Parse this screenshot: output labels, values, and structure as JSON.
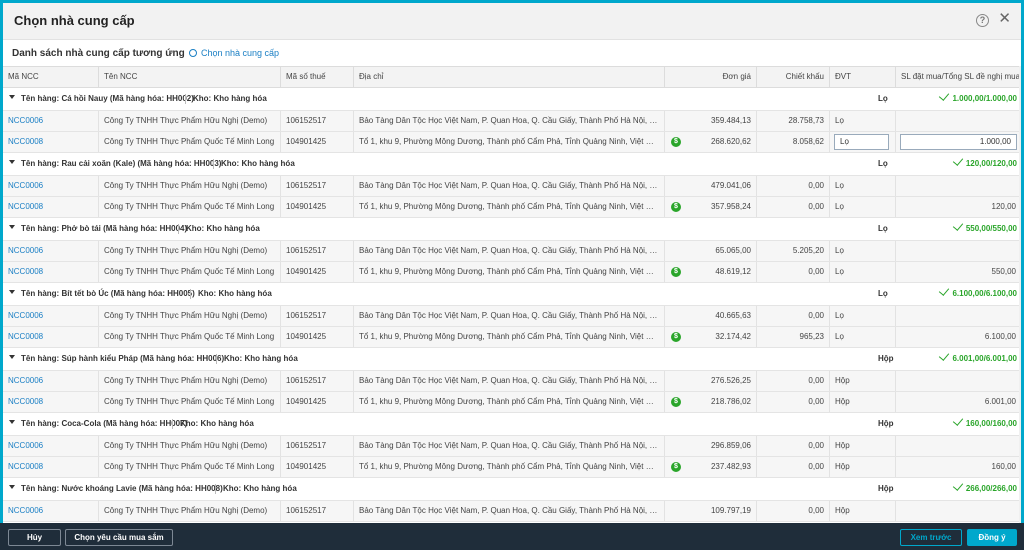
{
  "dialog": {
    "title": "Chọn nhà cung cấp"
  },
  "subhead": {
    "title": "Danh sách nhà cung cấp tương ứng",
    "choose_link": "Chọn nhà cung cấp"
  },
  "columns": [
    "Mã NCC",
    "Tên NCC",
    "Mã số thuế",
    "Địa chỉ",
    "Đơn giá",
    "Chiết khấu",
    "ĐVT",
    "SL đặt mua/Tổng SL đề nghị mua"
  ],
  "groups": [
    {
      "name": "Tên hàng: Cá hồi Nauy (Mã hàng hóa: HH002)",
      "warehouse": "Kho: Kho hàng hóa",
      "unit": "Lọ",
      "total": "1.000,00/1.000,00",
      "rows": [
        {
          "code": "NCC0006",
          "name": "Công Ty TNHH Thực Phẩm Hữu Nghị (Demo)",
          "tax": "106152517",
          "address": "Bảo Tàng Dân Tộc Học Việt Nam, P. Quan Hoa, Q. Cầu Giấy, Thành Phố Hà Nội, Việt Nam",
          "price": "359.484,13",
          "discount": "28.758,73",
          "unit": "Lọ",
          "qty": "",
          "dollar": false,
          "editing": false
        },
        {
          "code": "NCC0008",
          "name": "Công Ty TNHH Thực Phẩm Quốc Tế Minh Long",
          "tax": "104901425",
          "address": "Tổ 1, khu 9, Phường Mông Dương, Thành phố Cẩm Phả, Tỉnh Quảng Ninh, Việt Nam",
          "price": "268.620,62",
          "discount": "8.058,62",
          "unit": "Lọ",
          "qty": "1.000,00",
          "dollar": true,
          "editing": true
        }
      ]
    },
    {
      "name": "Tên hàng: Rau cải xoăn (Kale) (Mã hàng hóa: HH003)",
      "warehouse": "Kho: Kho hàng hóa",
      "unit": "Lọ",
      "total": "120,00/120,00",
      "rows": [
        {
          "code": "NCC0006",
          "name": "Công Ty TNHH Thực Phẩm Hữu Nghị (Demo)",
          "tax": "106152517",
          "address": "Bảo Tàng Dân Tộc Học Việt Nam, P. Quan Hoa, Q. Cầu Giấy, Thành Phố Hà Nội, Việt Nam",
          "price": "479.041,06",
          "discount": "0,00",
          "unit": "Lọ",
          "qty": "",
          "dollar": false,
          "editing": false
        },
        {
          "code": "NCC0008",
          "name": "Công Ty TNHH Thực Phẩm Quốc Tế Minh Long",
          "tax": "104901425",
          "address": "Tổ 1, khu 9, Phường Mông Dương, Thành phố Cẩm Phả, Tỉnh Quảng Ninh, Việt Nam",
          "price": "357.958,24",
          "discount": "0,00",
          "unit": "Lọ",
          "qty": "120,00",
          "dollar": true,
          "editing": false
        }
      ]
    },
    {
      "name": "Tên hàng: Phở bò tái (Mã hàng hóa: HH004)",
      "warehouse": "Kho: Kho hàng hóa",
      "unit": "Lọ",
      "total": "550,00/550,00",
      "rows": [
        {
          "code": "NCC0006",
          "name": "Công Ty TNHH Thực Phẩm Hữu Nghị (Demo)",
          "tax": "106152517",
          "address": "Bảo Tàng Dân Tộc Học Việt Nam, P. Quan Hoa, Q. Cầu Giấy, Thành Phố Hà Nội, Việt Nam",
          "price": "65.065,00",
          "discount": "5.205,20",
          "unit": "Lọ",
          "qty": "",
          "dollar": false,
          "editing": false
        },
        {
          "code": "NCC0008",
          "name": "Công Ty TNHH Thực Phẩm Quốc Tế Minh Long",
          "tax": "104901425",
          "address": "Tổ 1, khu 9, Phường Mông Dương, Thành phố Cẩm Phả, Tỉnh Quảng Ninh, Việt Nam",
          "price": "48.619,12",
          "discount": "0,00",
          "unit": "Lọ",
          "qty": "550,00",
          "dollar": true,
          "editing": false
        }
      ]
    },
    {
      "name": "Tên hàng: Bít tết bò Úc (Mã hàng hóa: HH005)",
      "warehouse": "Kho: Kho hàng hóa",
      "unit": "Lọ",
      "total": "6.100,00/6.100,00",
      "rows": [
        {
          "code": "NCC0006",
          "name": "Công Ty TNHH Thực Phẩm Hữu Nghị (Demo)",
          "tax": "106152517",
          "address": "Bảo Tàng Dân Tộc Học Việt Nam, P. Quan Hoa, Q. Cầu Giấy, Thành Phố Hà Nội, Việt Nam",
          "price": "40.665,63",
          "discount": "0,00",
          "unit": "Lọ",
          "qty": "",
          "dollar": false,
          "editing": false
        },
        {
          "code": "NCC0008",
          "name": "Công Ty TNHH Thực Phẩm Quốc Tế Minh Long",
          "tax": "104901425",
          "address": "Tổ 1, khu 9, Phường Mông Dương, Thành phố Cẩm Phả, Tỉnh Quảng Ninh, Việt Nam",
          "price": "32.174,42",
          "discount": "965,23",
          "unit": "Lọ",
          "qty": "6.100,00",
          "dollar": true,
          "editing": false
        }
      ]
    },
    {
      "name": "Tên hàng: Súp hành kiểu Pháp (Mã hàng hóa: HH006)",
      "warehouse": "Kho: Kho hàng hóa",
      "unit": "Hộp",
      "total": "6.001,00/6.001,00",
      "rows": [
        {
          "code": "NCC0006",
          "name": "Công Ty TNHH Thực Phẩm Hữu Nghị (Demo)",
          "tax": "106152517",
          "address": "Bảo Tàng Dân Tộc Học Việt Nam, P. Quan Hoa, Q. Cầu Giấy, Thành Phố Hà Nội, Việt Nam",
          "price": "276.526,25",
          "discount": "0,00",
          "unit": "Hộp",
          "qty": "",
          "dollar": false,
          "editing": false
        },
        {
          "code": "NCC0008",
          "name": "Công Ty TNHH Thực Phẩm Quốc Tế Minh Long",
          "tax": "104901425",
          "address": "Tổ 1, khu 9, Phường Mông Dương, Thành phố Cẩm Phả, Tỉnh Quảng Ninh, Việt Nam",
          "price": "218.786,02",
          "discount": "0,00",
          "unit": "Hộp",
          "qty": "6.001,00",
          "dollar": true,
          "editing": false
        }
      ]
    },
    {
      "name": "Tên hàng: Coca-Cola (Mã hàng hóa: HH007)",
      "warehouse": "Kho: Kho hàng hóa",
      "unit": "Hộp",
      "total": "160,00/160,00",
      "rows": [
        {
          "code": "NCC0006",
          "name": "Công Ty TNHH Thực Phẩm Hữu Nghị (Demo)",
          "tax": "106152517",
          "address": "Bảo Tàng Dân Tộc Học Việt Nam, P. Quan Hoa, Q. Cầu Giấy, Thành Phố Hà Nội, Việt Nam",
          "price": "296.859,06",
          "discount": "0,00",
          "unit": "Hộp",
          "qty": "",
          "dollar": false,
          "editing": false
        },
        {
          "code": "NCC0008",
          "name": "Công Ty TNHH Thực Phẩm Quốc Tế Minh Long",
          "tax": "104901425",
          "address": "Tổ 1, khu 9, Phường Mông Dương, Thành phố Cẩm Phả, Tỉnh Quảng Ninh, Việt Nam",
          "price": "237.482,93",
          "discount": "0,00",
          "unit": "Hộp",
          "qty": "160,00",
          "dollar": true,
          "editing": false
        }
      ]
    },
    {
      "name": "Tên hàng: Nước khoáng Lavie (Mã hàng hóa: HH008)",
      "warehouse": "Kho: Kho hàng hóa",
      "unit": "Hộp",
      "total": "266,00/266,00",
      "rows": [
        {
          "code": "NCC0006",
          "name": "Công Ty TNHH Thực Phẩm Hữu Nghị (Demo)",
          "tax": "106152517",
          "address": "Bảo Tàng Dân Tộc Học Việt Nam, P. Quan Hoa, Q. Cầu Giấy, Thành Phố Hà Nội, Việt Nam",
          "price": "109.797,19",
          "discount": "0,00",
          "unit": "Hộp",
          "qty": "",
          "dollar": false,
          "editing": false
        }
      ]
    }
  ],
  "footer": {
    "cancel": "Hủy",
    "choose_request": "Chọn yêu cầu mua sắm",
    "preview": "Xem trước",
    "close": "Đồng ý"
  },
  "colors": {
    "accent": "#00a8cc",
    "link": "#1a7fc4",
    "success": "#2aa52a",
    "footer_bg": "#1f2d3a"
  },
  "icons": {
    "help": "help-circle-icon",
    "close": "close-icon",
    "settings": "gear-icon",
    "collapse": "caret-down-icon",
    "ok": "check-icon",
    "currency": "dollar-icon"
  }
}
